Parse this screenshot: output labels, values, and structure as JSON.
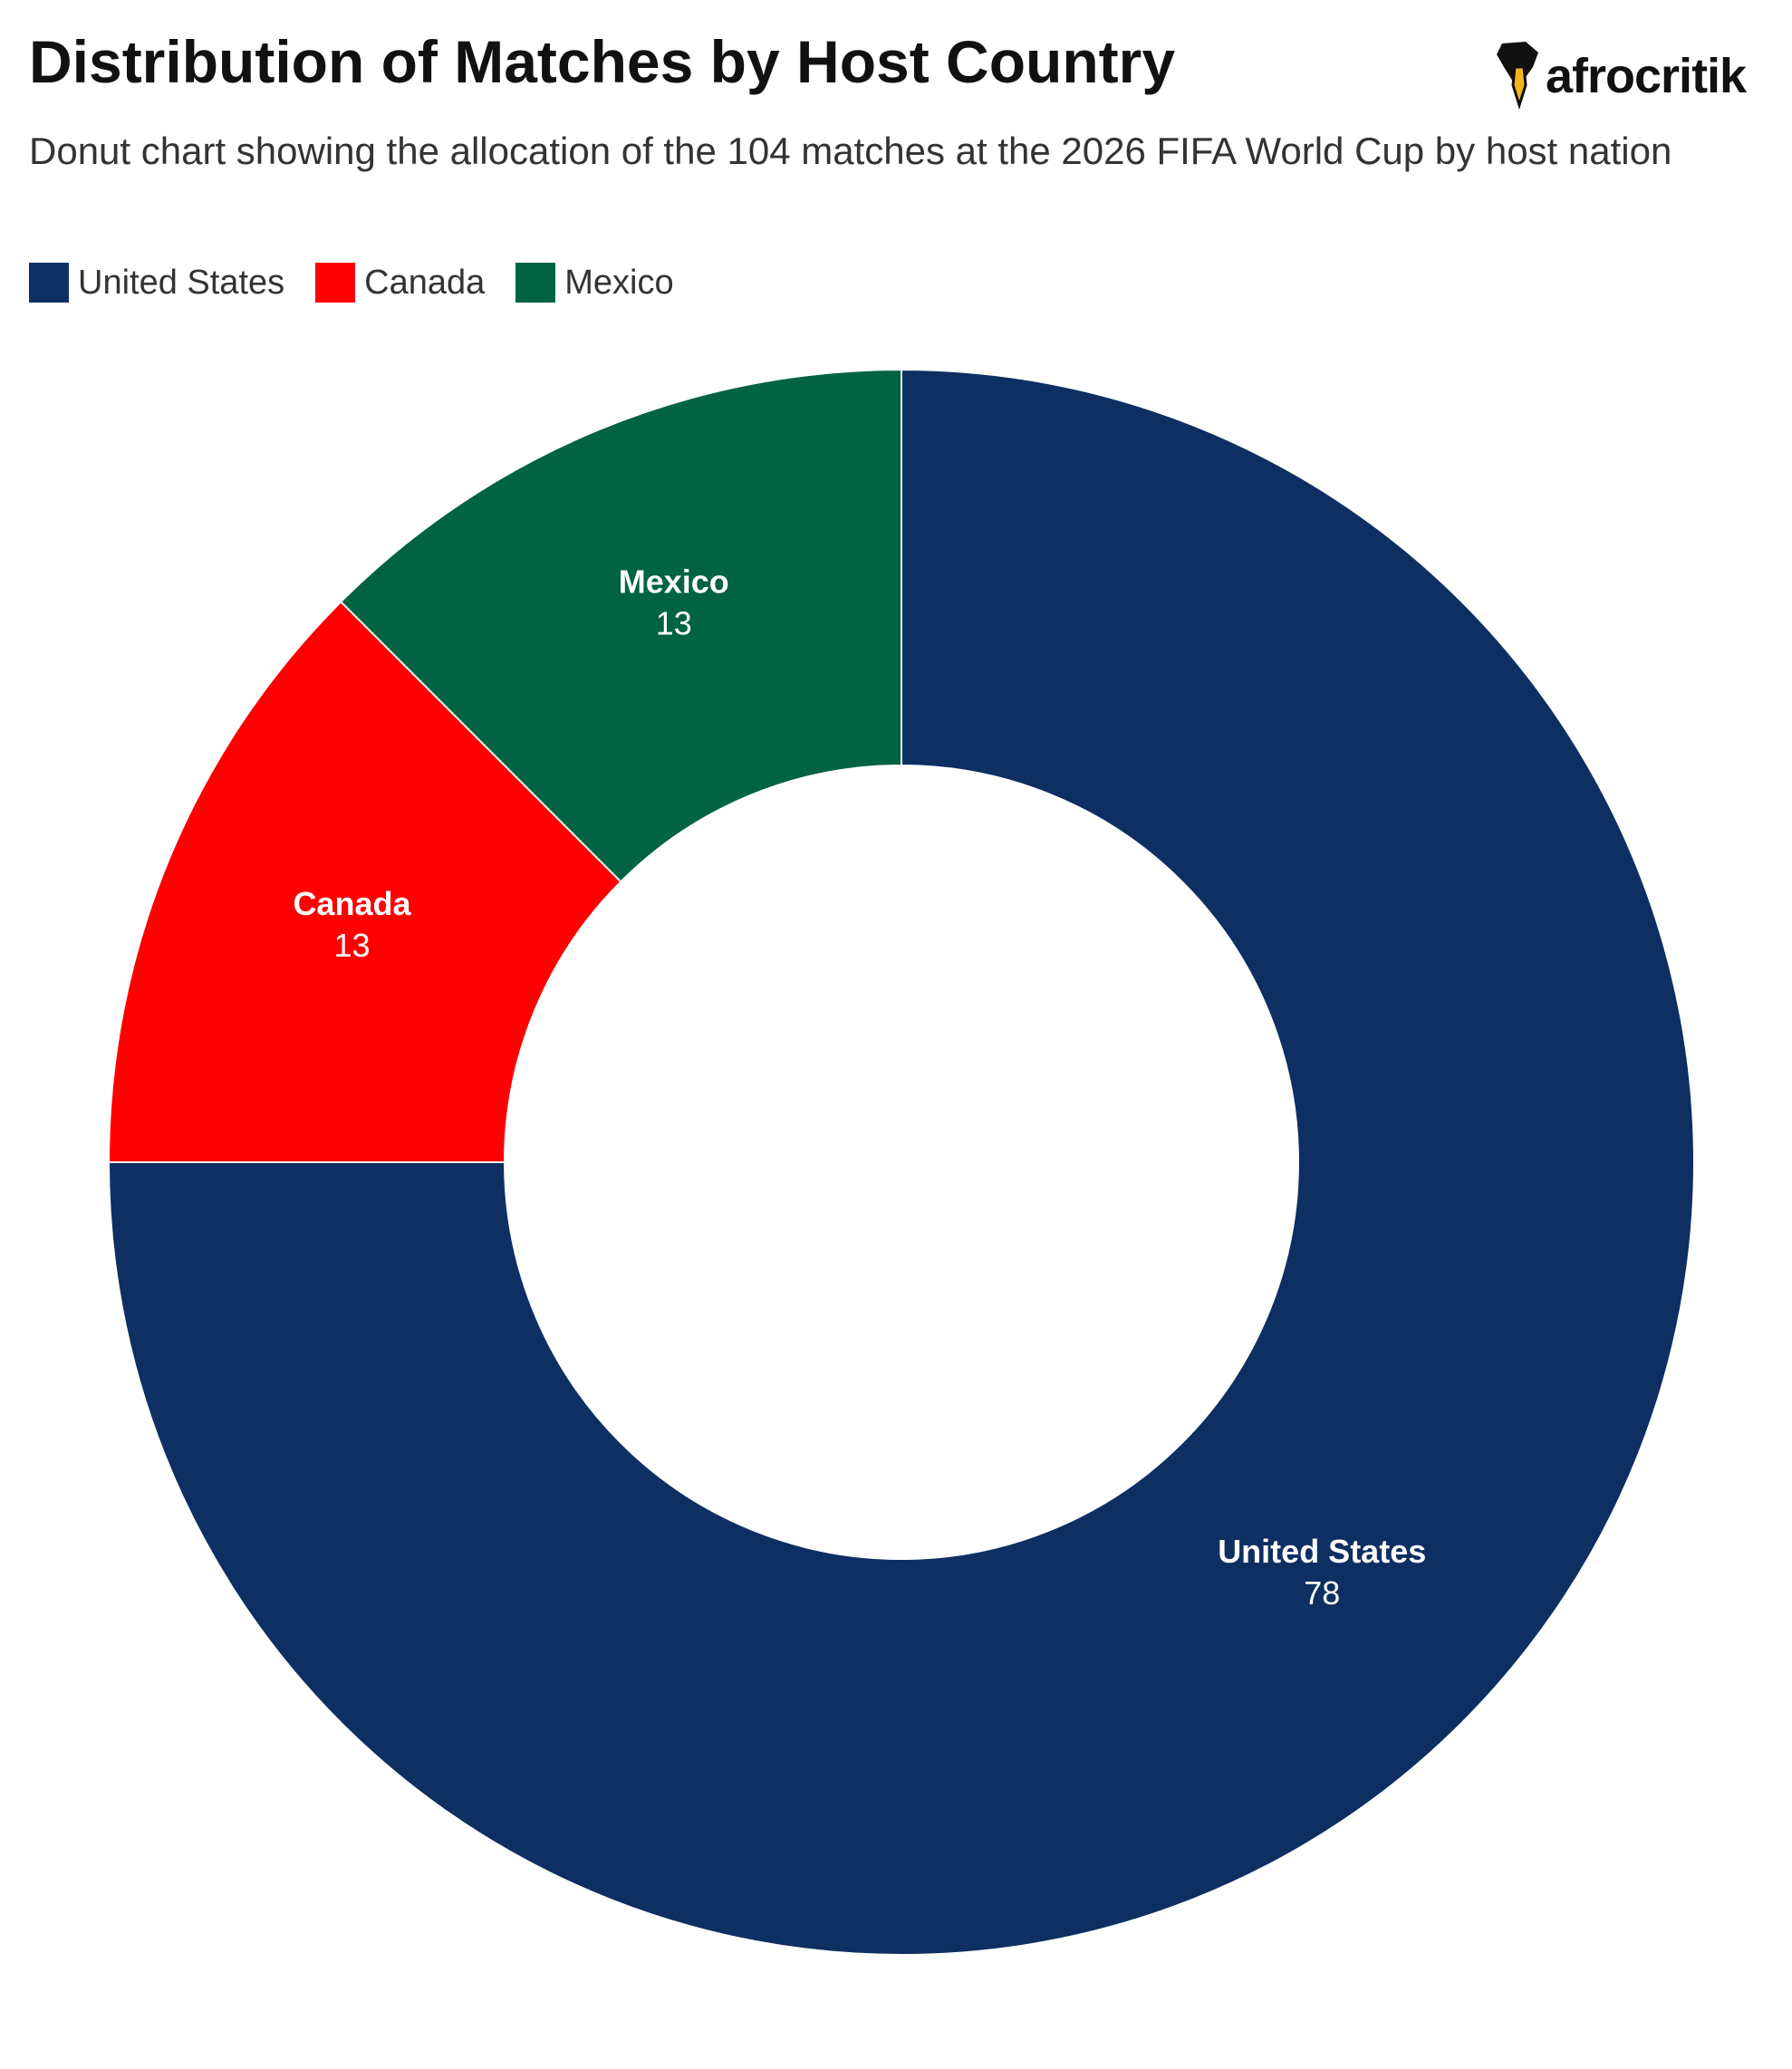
{
  "chart_data": {
    "type": "pie",
    "title": "Distribution of Matches by Host Country",
    "subtitle": "Donut chart showing the allocation of the 104 matches at the 2026 FIFA World Cup by host nation",
    "logo": "afrocritik",
    "categories": [
      "United States",
      "Canada",
      "Mexico"
    ],
    "values": [
      78,
      13,
      13
    ],
    "colors": [
      "#0d2f62",
      "#ff0000",
      "#006341"
    ],
    "legend": "top-left"
  }
}
